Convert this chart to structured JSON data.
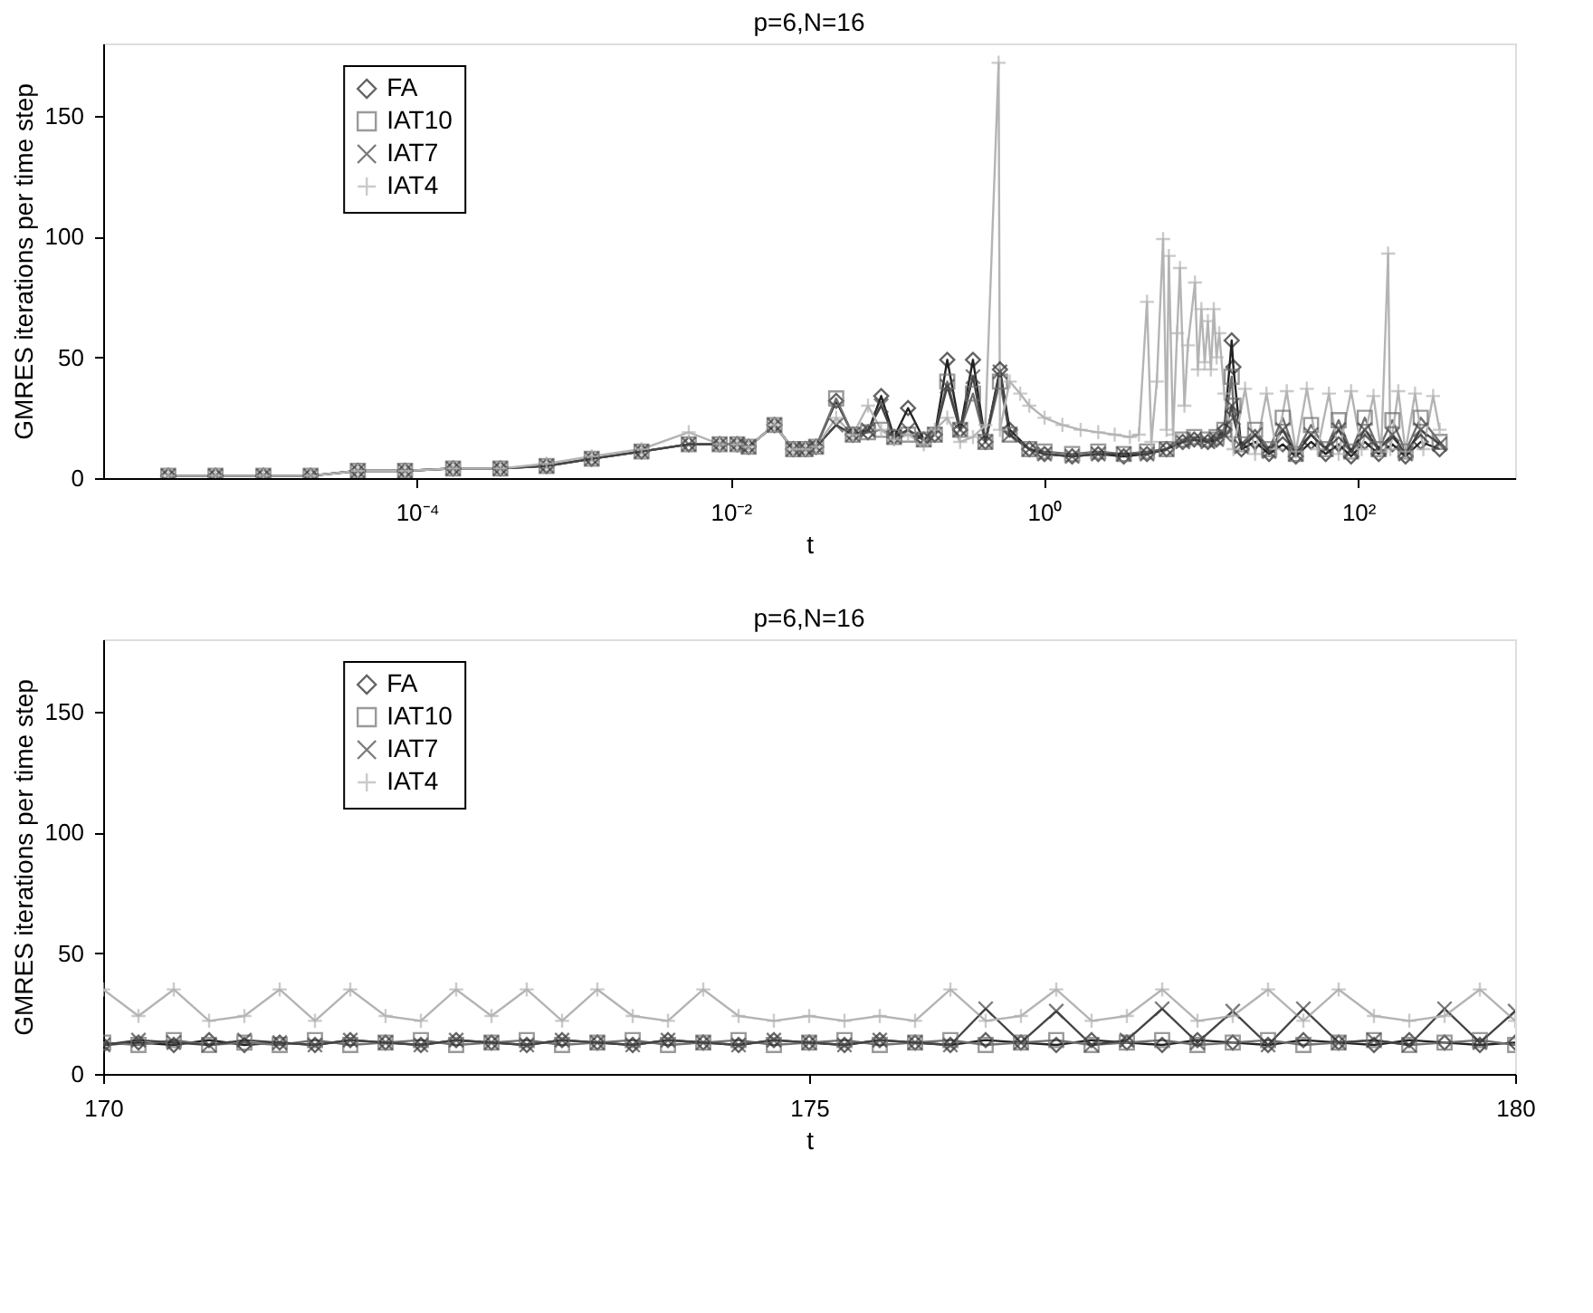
{
  "chart_data": [
    {
      "type": "line",
      "title": "p=6,N=16",
      "xlabel": "t",
      "ylabel": "GMRES iterations per time step",
      "log": "x",
      "legend": "top left",
      "grid": false,
      "xlim": [
        1e-06,
        1000
      ],
      "xticks": [
        {
          "value": 0.0001,
          "label": "10⁻⁴"
        },
        {
          "value": 0.01,
          "label": "10⁻²"
        },
        {
          "value": 1,
          "label": "10⁰"
        },
        {
          "value": 100,
          "label": "10²"
        }
      ],
      "ylim": [
        0,
        180
      ],
      "yticks": [
        0,
        50,
        100,
        150
      ],
      "series": [
        {
          "name": "FA",
          "color": "#222222",
          "marker": "diamond",
          "x": [
            2.6e-06,
            5.2e-06,
            1.05e-05,
            2.1e-05,
            4.2e-05,
            8.4e-05,
            0.00017,
            0.00034,
            0.00067,
            0.0013,
            0.0027,
            0.0054,
            0.0085,
            0.011,
            0.013,
            0.019,
            0.025,
            0.03,
            0.035,
            0.047,
            0.06,
            0.075,
            0.091,
            0.11,
            0.135,
            0.17,
            0.2,
            0.24,
            0.29,
            0.35,
            0.42,
            0.52,
            0.6,
            0.8,
            1.0,
            1.5,
            2.2,
            3.2,
            4.5,
            6,
            7.6,
            9,
            11,
            12.5,
            14,
            15.6,
            16,
            18,
            22,
            27,
            33,
            40,
            50,
            62,
            75,
            90,
            110,
            135,
            165,
            200,
            250,
            330
          ],
          "values": [
            1,
            1,
            1,
            1,
            3,
            3,
            4,
            4,
            5,
            8,
            11,
            14,
            14,
            14,
            13,
            22,
            12,
            12,
            13,
            32,
            18,
            19,
            34,
            17,
            29,
            16,
            18,
            49,
            20,
            49,
            15,
            45,
            20,
            12,
            10,
            9,
            10,
            9,
            10,
            12,
            15,
            16,
            15,
            16,
            20,
            57,
            46,
            12,
            15,
            10,
            14,
            9,
            15,
            10,
            14,
            9,
            15,
            10,
            14,
            9,
            15,
            12
          ]
        },
        {
          "name": "IAT10",
          "color": "#707070",
          "marker": "square",
          "x": [
            2.6e-06,
            5.2e-06,
            1.05e-05,
            2.1e-05,
            4.2e-05,
            8.4e-05,
            0.00017,
            0.00034,
            0.00067,
            0.0013,
            0.0027,
            0.0054,
            0.0085,
            0.011,
            0.013,
            0.019,
            0.025,
            0.03,
            0.035,
            0.047,
            0.06,
            0.075,
            0.091,
            0.11,
            0.135,
            0.17,
            0.2,
            0.24,
            0.29,
            0.35,
            0.42,
            0.52,
            0.6,
            0.8,
            1.0,
            1.5,
            2.2,
            3.2,
            4.5,
            6,
            7.6,
            9,
            11,
            12.5,
            14,
            15.6,
            16,
            18,
            22,
            27,
            33,
            40,
            50,
            62,
            75,
            90,
            110,
            135,
            165,
            200,
            250,
            330
          ],
          "values": [
            1,
            1,
            1,
            1,
            3,
            3,
            4,
            4,
            5,
            8,
            11,
            14,
            14,
            14,
            13,
            22,
            12,
            12,
            13,
            33,
            18,
            19,
            20,
            17,
            18,
            16,
            18,
            40,
            20,
            35,
            15,
            40,
            18,
            12,
            11,
            10,
            11,
            10,
            11,
            12,
            16,
            17,
            16,
            17,
            20,
            42,
            30,
            14,
            20,
            12,
            25,
            10,
            22,
            12,
            24,
            11,
            25,
            12,
            24,
            11,
            25,
            15
          ]
        },
        {
          "name": "IAT7",
          "color": "#444444",
          "marker": "x",
          "x": [
            2.6e-06,
            5.2e-06,
            1.05e-05,
            2.1e-05,
            4.2e-05,
            8.4e-05,
            0.00017,
            0.00034,
            0.00067,
            0.0013,
            0.0027,
            0.0054,
            0.0085,
            0.011,
            0.013,
            0.019,
            0.025,
            0.03,
            0.035,
            0.047,
            0.06,
            0.075,
            0.091,
            0.11,
            0.135,
            0.17,
            0.2,
            0.24,
            0.29,
            0.35,
            0.42,
            0.52,
            0.6,
            0.8,
            1.0,
            1.5,
            2.2,
            3.2,
            4.5,
            6,
            7.6,
            9,
            11,
            12.5,
            14,
            15.6,
            16,
            18,
            22,
            27,
            33,
            40,
            50,
            62,
            75,
            90,
            110,
            135,
            165,
            200,
            250,
            330
          ],
          "values": [
            1,
            1,
            1,
            1,
            3,
            3,
            4,
            4,
            5,
            8,
            11,
            14,
            14,
            14,
            13,
            22,
            12,
            12,
            13,
            22,
            18,
            20,
            30,
            17,
            20,
            16,
            18,
            38,
            20,
            42,
            15,
            44,
            18,
            12,
            10,
            9,
            10,
            10,
            10,
            12,
            15,
            16,
            15,
            16,
            18,
            30,
            25,
            13,
            18,
            11,
            20,
            10,
            18,
            12,
            20,
            11,
            20,
            12,
            18,
            10,
            20,
            14
          ]
        },
        {
          "name": "IAT4",
          "color": "#b4b4b4",
          "marker": "cross",
          "x": [
            2.6e-06,
            5.2e-06,
            1.05e-05,
            2.1e-05,
            4.2e-05,
            8.4e-05,
            0.00017,
            0.00034,
            0.00067,
            0.0013,
            0.0027,
            0.0054,
            0.0085,
            0.011,
            0.013,
            0.019,
            0.025,
            0.03,
            0.035,
            0.047,
            0.06,
            0.075,
            0.091,
            0.11,
            0.135,
            0.17,
            0.2,
            0.24,
            0.29,
            0.35,
            0.42,
            0.51,
            0.52,
            0.6,
            0.7,
            0.8,
            1.0,
            1.3,
            1.7,
            2.2,
            2.8,
            3.5,
            4.0,
            4.5,
            4.8,
            5.2,
            5.7,
            6.0,
            6.2,
            6.6,
            7.0,
            7.3,
            7.8,
            8.2,
            9.1,
            9.5,
            10,
            10.5,
            11,
            11.5,
            12,
            12.5,
            13,
            14,
            16,
            19,
            22,
            26,
            30,
            35,
            40,
            47,
            55,
            65,
            75,
            90,
            105,
            125,
            140,
            155,
            160,
            180,
            200,
            230,
            260,
            300,
            330
          ],
          "values": [
            1,
            1,
            1,
            1,
            3,
            3,
            4,
            4,
            6,
            9,
            12,
            19,
            14,
            14,
            13,
            22,
            12,
            12,
            13,
            25,
            18,
            30,
            20,
            16,
            18,
            14,
            20,
            25,
            15,
            17,
            22,
            172,
            20,
            40,
            35,
            30,
            25,
            22,
            20,
            19,
            18,
            17,
            18,
            73,
            15,
            40,
            99,
            20,
            92,
            18,
            60,
            87,
            30,
            55,
            81,
            45,
            70,
            48,
            65,
            45,
            70,
            50,
            60,
            35,
            12,
            37,
            10,
            35,
            12,
            36,
            11,
            37,
            12,
            35,
            10,
            36,
            12,
            34,
            11,
            93,
            12,
            36,
            11,
            35,
            12,
            34,
            20
          ]
        }
      ]
    },
    {
      "type": "line",
      "title": "p=6,N=16",
      "xlabel": "t",
      "ylabel": "GMRES iterations per time step",
      "legend": "top left",
      "grid": false,
      "xlim": [
        170,
        180
      ],
      "xticks": [
        170,
        175,
        180
      ],
      "ylim": [
        0,
        180
      ],
      "yticks": [
        0,
        50,
        100,
        150
      ],
      "x": [
        170,
        170.25,
        170.5,
        170.75,
        171,
        171.25,
        171.5,
        171.75,
        172,
        172.25,
        172.5,
        172.75,
        173,
        173.25,
        173.5,
        173.75,
        174,
        174.25,
        174.5,
        174.75,
        175,
        175.25,
        175.5,
        175.75,
        176,
        176.25,
        176.5,
        176.75,
        177,
        177.25,
        177.5,
        177.75,
        178,
        178.25,
        178.5,
        178.75,
        179,
        179.25,
        179.5,
        179.75,
        180
      ],
      "series": [
        {
          "name": "FA",
          "color": "#222222",
          "marker": "diamond",
          "values": [
            12,
            13,
            12,
            14,
            12,
            13,
            12,
            14,
            13,
            12,
            14,
            13,
            12,
            14,
            13,
            12,
            14,
            13,
            12,
            14,
            13,
            12,
            14,
            13,
            12,
            14,
            13,
            12,
            14,
            13,
            12,
            14,
            13,
            12,
            14,
            13,
            12,
            14,
            13,
            12,
            13
          ]
        },
        {
          "name": "IAT10",
          "color": "#707070",
          "marker": "square",
          "values": [
            13,
            12,
            14,
            12,
            13,
            12,
            14,
            12,
            13,
            14,
            12,
            13,
            14,
            12,
            13,
            14,
            12,
            13,
            14,
            12,
            13,
            14,
            12,
            13,
            14,
            12,
            13,
            14,
            12,
            13,
            14,
            12,
            13,
            14,
            12,
            13,
            14,
            12,
            13,
            14,
            12
          ]
        },
        {
          "name": "IAT7",
          "color": "#444444",
          "marker": "x",
          "values": [
            12,
            14,
            13,
            12,
            14,
            13,
            12,
            14,
            13,
            12,
            14,
            13,
            12,
            14,
            13,
            12,
            14,
            13,
            12,
            14,
            13,
            12,
            14,
            13,
            12,
            27,
            13,
            26,
            12,
            14,
            27,
            13,
            26,
            12,
            27,
            13,
            14,
            12,
            27,
            13,
            26
          ]
        },
        {
          "name": "IAT4",
          "color": "#b4b4b4",
          "marker": "cross",
          "values": [
            35,
            24,
            35,
            22,
            24,
            35,
            22,
            35,
            24,
            22,
            35,
            24,
            35,
            22,
            35,
            24,
            22,
            35,
            24,
            22,
            24,
            22,
            24,
            22,
            35,
            22,
            24,
            35,
            22,
            24,
            35,
            22,
            24,
            35,
            22,
            35,
            24,
            22,
            24,
            35,
            22
          ]
        }
      ]
    }
  ]
}
